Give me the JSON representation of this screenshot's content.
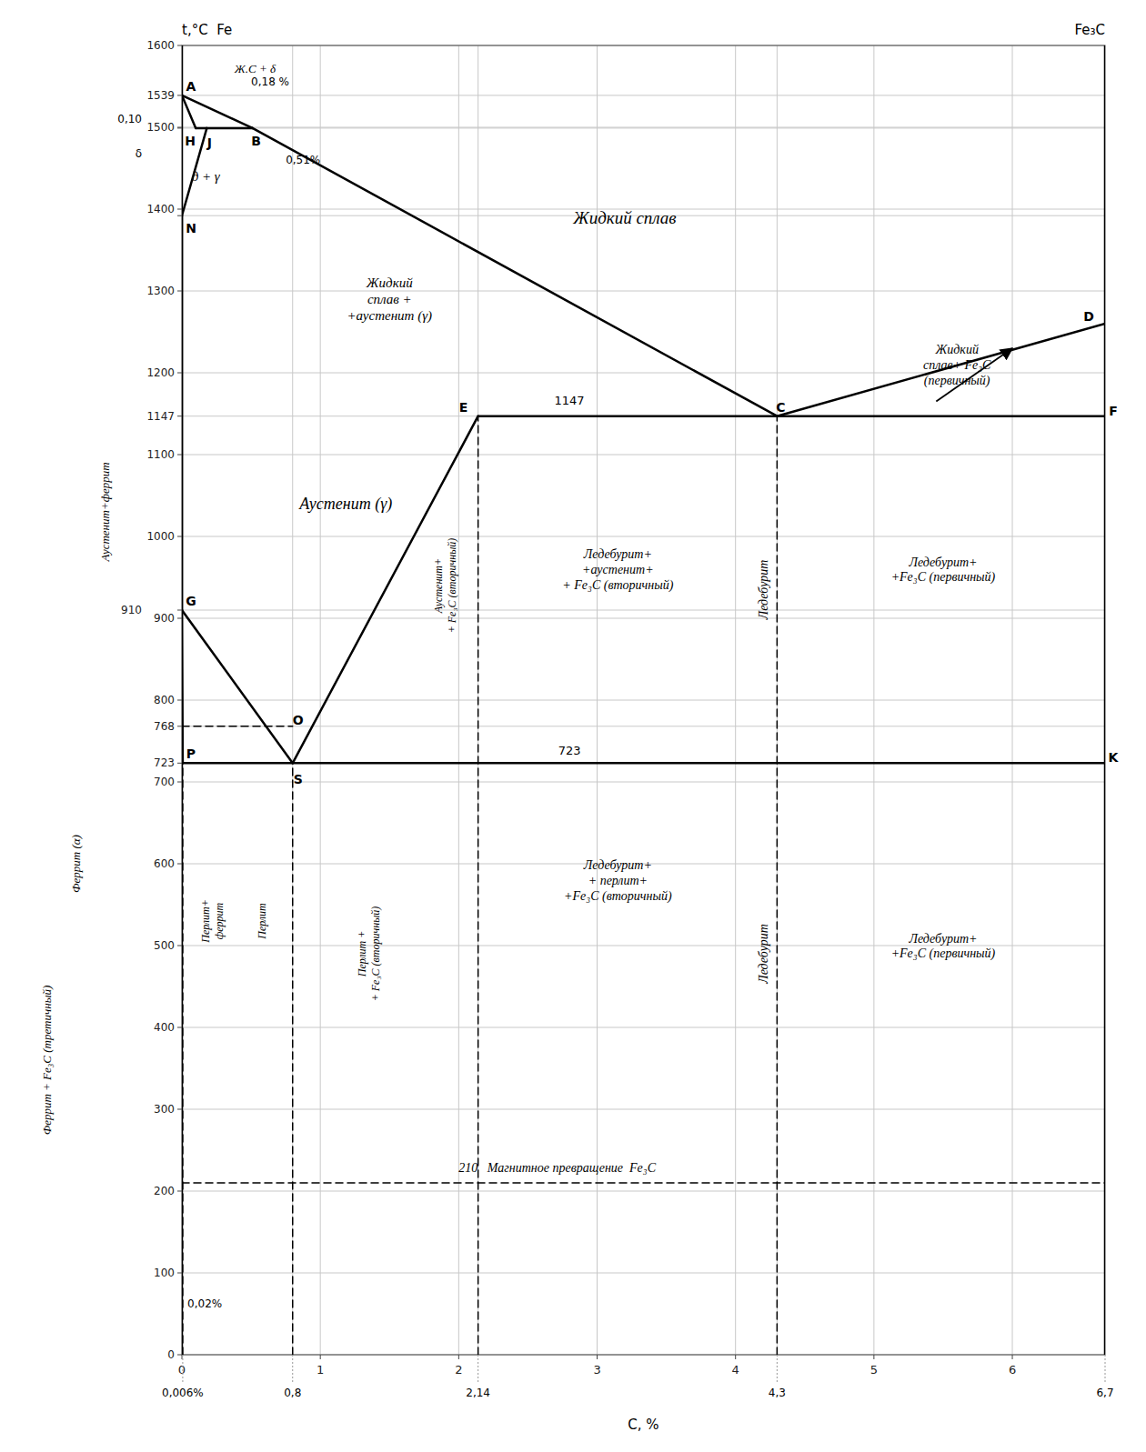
{
  "chart_data": {
    "type": "line",
    "x_label": "C, %",
    "headers": [
      "t,°C  Fe",
      "Fe₃C"
    ],
    "color": "#000000",
    "grid": true,
    "xlim": [
      0,
      6.67
    ],
    "ylim": [
      0,
      1600
    ],
    "xticks": [
      0,
      1,
      2,
      3,
      4,
      5,
      6
    ],
    "yticks": [
      0,
      100,
      200,
      300,
      400,
      500,
      600,
      700,
      723,
      768,
      800,
      900,
      910,
      1000,
      1100,
      1147,
      1200,
      1300,
      {
        "value": 1392,
        "label": null
      },
      1400,
      {
        "value": 1499,
        "label": null
      },
      1500,
      1539,
      1600
    ],
    "x_grid_extra": [
      0.8,
      2.14,
      4.3
    ],
    "x_value_labels": [
      {
        "value": 0.006,
        "label": "0,006%"
      },
      {
        "value": 0.8,
        "label": "0,8"
      },
      {
        "value": 2.14,
        "label": "2,14"
      },
      {
        "value": 4.3,
        "label": "4,3"
      },
      {
        "value": 6.67,
        "label": "6,7"
      }
    ],
    "series": [
      {
        "x": [
          0,
          0.51
        ],
        "values": [
          1539,
          1499
        ],
        "line_style": "solid"
      },
      {
        "x": [
          0.51,
          4.3
        ],
        "values": [
          1499,
          1147
        ],
        "line_style": "solid"
      },
      {
        "x": [
          4.3,
          6.67
        ],
        "values": [
          1147,
          1260
        ],
        "line_style": "solid"
      },
      {
        "x": [
          0,
          0.1
        ],
        "values": [
          1539,
          1499
        ],
        "line_style": "solid"
      },
      {
        "x": [
          0.1,
          0.51
        ],
        "values": [
          1499,
          1499
        ],
        "line_style": "solid"
      },
      {
        "x": [
          0,
          0.18
        ],
        "values": [
          1392,
          1499
        ],
        "line_style": "solid"
      },
      {
        "x": [
          0,
          0
        ],
        "values": [
          1392,
          910
        ],
        "line_style": "solid"
      },
      {
        "x": [
          0,
          0.8
        ],
        "values": [
          910,
          723
        ],
        "line_style": "solid"
      },
      {
        "x": [
          0,
          0.006
        ],
        "values": [
          910,
          723
        ],
        "line_style": "solid"
      },
      {
        "x": [
          2.14,
          0.8
        ],
        "values": [
          1147,
          723
        ],
        "line_style": "solid"
      },
      {
        "x": [
          2.14,
          6.67
        ],
        "values": [
          1147,
          1147
        ],
        "line_style": "solid"
      },
      {
        "x": [
          0.006,
          6.67
        ],
        "values": [
          723,
          723
        ],
        "line_style": "solid"
      },
      {
        "x": [
          0,
          0
        ],
        "values": [
          0,
          1600
        ],
        "line_style": "solid"
      },
      {
        "x": [
          6.67,
          6.67
        ],
        "values": [
          0,
          1600
        ],
        "line_style": "solid"
      },
      {
        "x": [
          0,
          0.8
        ],
        "values": [
          768,
          768
        ],
        "line_style": "dashed"
      },
      {
        "x": [
          0.006,
          0.006
        ],
        "values": [
          0,
          723
        ],
        "line_style": "dashed"
      },
      {
        "x": [
          0.8,
          0.8
        ],
        "values": [
          0,
          723
        ],
        "line_style": "dashed"
      },
      {
        "x": [
          2.14,
          2.14
        ],
        "values": [
          0,
          1147
        ],
        "line_style": "dashed"
      },
      {
        "x": [
          4.3,
          4.3
        ],
        "values": [
          0,
          1147
        ],
        "line_style": "dashed"
      },
      {
        "x": [
          0,
          6.67
        ],
        "values": [
          210,
          210
        ],
        "line_style": "dashed"
      }
    ],
    "point_labels": [
      {
        "text": "A",
        "x": 0,
        "y": 1539
      },
      {
        "text": "B",
        "x": 0.51,
        "y": 1499
      },
      {
        "text": "H",
        "x": 0.1,
        "y": 1499
      },
      {
        "text": "J",
        "x": 0.18,
        "y": 1499
      },
      {
        "text": "N",
        "x": 0,
        "y": 1392
      },
      {
        "text": "G",
        "x": 0,
        "y": 910
      },
      {
        "text": "E",
        "x": 2.14,
        "y": 1147
      },
      {
        "text": "C",
        "x": 4.3,
        "y": 1147
      },
      {
        "text": "F",
        "x": 6.67,
        "y": 1147
      },
      {
        "text": "D",
        "x": 6.67,
        "y": 1260
      },
      {
        "text": "P",
        "x": 0.006,
        "y": 723
      },
      {
        "text": "S",
        "x": 0.8,
        "y": 723
      },
      {
        "text": "K",
        "x": 6.67,
        "y": 723
      },
      {
        "text": "O",
        "x": 0.8,
        "y": 769
      }
    ],
    "annotations": [
      {
        "text": "Жидкий сплав",
        "x": 3.2,
        "y": 1390
      },
      {
        "text": "Жидкий\nсплав +\n+аустенит (γ)",
        "x": 1.5,
        "y": 1290
      },
      {
        "text": "Жидкий\nсплав+ Fe₃C\n(первичный)",
        "x": 5.6,
        "y": 1210
      },
      {
        "text": "Аустенит (γ)",
        "x": 0.85,
        "y": 1040
      },
      {
        "text": "д + γ",
        "x": 0.07,
        "y": 1440
      },
      {
        "text": "Аустенит+\n+ Fe₃C (вторичный)",
        "x": 1.9,
        "y": 940
      },
      {
        "text": "Ледебурит+\n+аустенит+\n+ Fe₃C (вторичный)",
        "x": 3.15,
        "y": 960
      },
      {
        "text": "Ледебурит",
        "x": 4.2,
        "y": 935
      },
      {
        "text": "Ледебурит+\n+Fe₃C (первичный)",
        "x": 5.5,
        "y": 960
      },
      {
        "text": "Ледебурит+\n+ перлит+\n+Fe₃C (вторичный)",
        "x": 3.15,
        "y": 580
      },
      {
        "text": "Ледебурит",
        "x": 4.2,
        "y": 490
      },
      {
        "text": "Ледебурит+\n+Fe₃C (первичный)",
        "x": 5.5,
        "y": 500
      },
      {
        "text": "Перлит+\nферрит",
        "x": 0.22,
        "y": 530
      },
      {
        "text": "Перлит",
        "x": 0.58,
        "y": 530
      },
      {
        "text": "Перлит +\n+ Fe₃C (вторичный)",
        "x": 1.35,
        "y": 490
      },
      {
        "text": "210   Магнитное превращение  Fe₃C",
        "x": 2.0,
        "y": 220
      },
      {
        "text": "0,02%",
        "x": 0.04,
        "y": 55
      },
      {
        "text": "1147",
        "x": 2.8,
        "y": 1158
      },
      {
        "text": "723",
        "x": 2.8,
        "y": 730
      },
      {
        "text": "Ж.С + δ",
        "x": 0.38,
        "y": 1572
      },
      {
        "text": "0,18 %",
        "x": 0.5,
        "y": 1556
      },
      {
        "text": "0,51%",
        "x": 0.75,
        "y": 1460
      }
    ],
    "margin_labels": [
      {
        "text": "Аустенит+феррит",
        "y": 1030
      },
      {
        "text": "Феррит (α)",
        "y": 600
      },
      {
        "text": "Феррит + Fe₃C (третичный)",
        "y": 360
      }
    ],
    "margin_notes": [
      {
        "text": "0,10",
        "y": 1510
      },
      {
        "text": "δ",
        "y": 1468
      }
    ],
    "arrows": [
      {
        "x": [
          5.45,
          6.0
        ],
        "y": [
          1165,
          1230
        ]
      }
    ]
  }
}
